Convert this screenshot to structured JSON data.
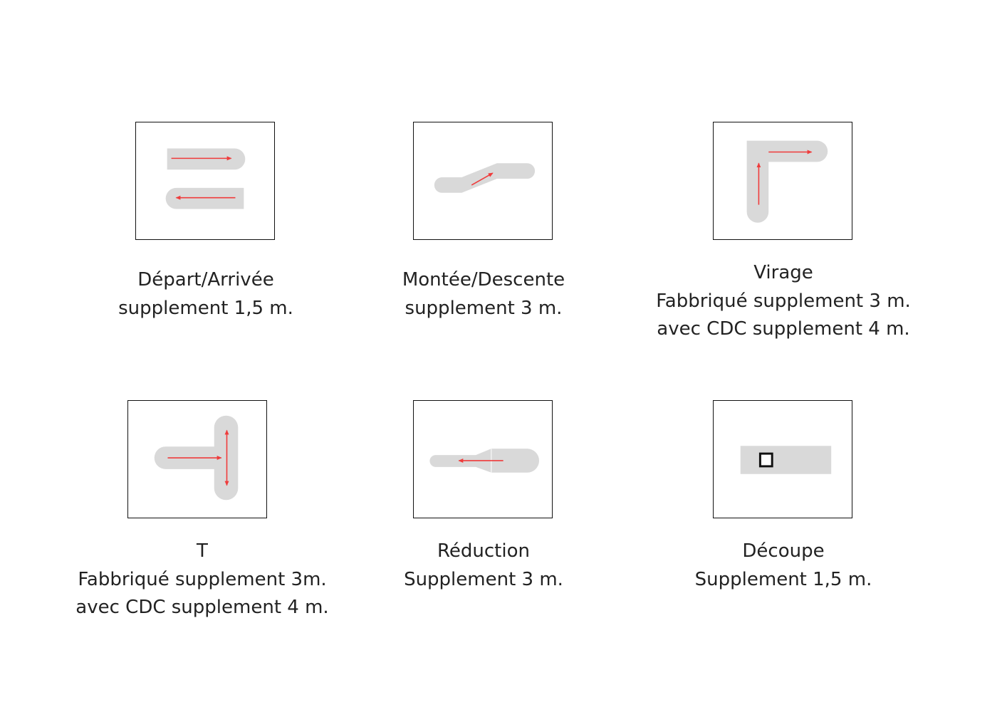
{
  "colors": {
    "track": "#d9d9d9",
    "arrow": "#ef3b3b",
    "frame": "#111111",
    "text": "#222222"
  },
  "items": [
    {
      "id": "depart-arrivee",
      "icon": "start-finish-icon",
      "lines": [
        "Départ/Arrivée",
        "supplement 1,5 m."
      ]
    },
    {
      "id": "montee-descente",
      "icon": "slope-icon",
      "lines": [
        "Montée/Descente",
        "supplement 3 m."
      ]
    },
    {
      "id": "virage",
      "icon": "bend-icon",
      "lines": [
        "Virage",
        "Fabbriqué supplement 3 m.",
        "avec CDC supplement 4 m."
      ]
    },
    {
      "id": "t",
      "icon": "t-junction-icon",
      "lines": [
        "T",
        "Fabbriqué supplement 3m.",
        "avec CDC supplement 4 m."
      ]
    },
    {
      "id": "reduction",
      "icon": "reduction-icon",
      "lines": [
        "Réduction",
        "Supplement 3 m."
      ]
    },
    {
      "id": "decoupe",
      "icon": "cutout-icon",
      "lines": [
        "Découpe",
        "Supplement 1,5 m."
      ]
    }
  ]
}
